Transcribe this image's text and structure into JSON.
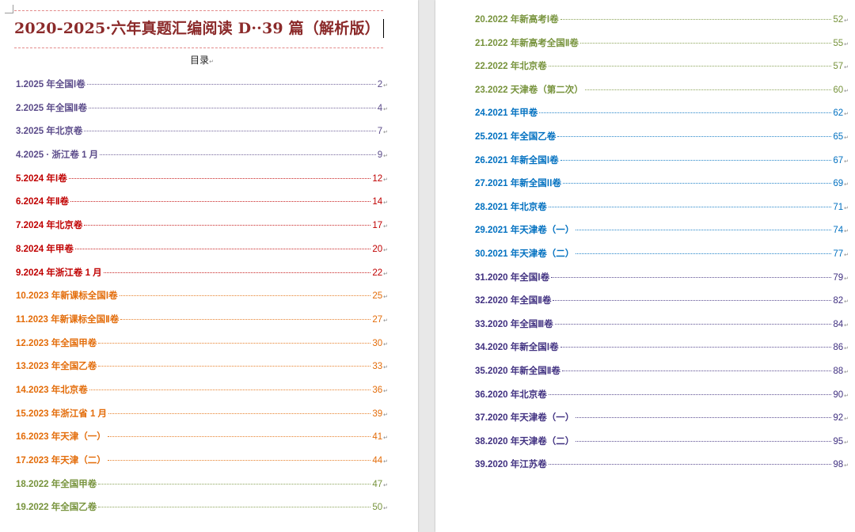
{
  "document": {
    "title": "2020-2025·六年真题汇编阅读 D··39 篇（解析版）",
    "toc_heading": "目录",
    "paragraph_mark": "↵"
  },
  "colors": {
    "title": "#8b2a2a",
    "purple": "#5b4b8a",
    "red": "#c00000",
    "orange": "#e36c09",
    "green": "#77933c",
    "blue": "#0070c0",
    "deep_purple": "#403080"
  },
  "toc_left": [
    {
      "label": "1.2025 年全国Ⅰ卷",
      "page": "2",
      "color": "#5b4b8a"
    },
    {
      "label": "2.2025 年全国Ⅱ卷",
      "page": "4",
      "color": "#5b4b8a"
    },
    {
      "label": "3.2025 年北京卷",
      "page": "7",
      "color": "#5b4b8a"
    },
    {
      "label": "4.2025 · 浙江卷 1 月",
      "page": "9",
      "color": "#5b4b8a"
    },
    {
      "label": "5.2024 年Ⅰ卷",
      "page": "12",
      "color": "#c00000"
    },
    {
      "label": "6.2024 年Ⅱ卷",
      "page": "14",
      "color": "#c00000"
    },
    {
      "label": "7.2024 年北京卷",
      "page": "17",
      "color": "#c00000"
    },
    {
      "label": "8.2024 年甲卷",
      "page": "20",
      "color": "#c00000"
    },
    {
      "label": "9.2024 年浙江卷 1 月",
      "page": "22",
      "color": "#c00000"
    },
    {
      "label": "10.2023 年新课标全国Ⅰ卷",
      "page": "25",
      "color": "#e36c09"
    },
    {
      "label": "11.2023 年新课标全国Ⅱ卷",
      "page": "27",
      "color": "#e36c09"
    },
    {
      "label": "12.2023 年全国甲卷",
      "page": "30",
      "color": "#e36c09"
    },
    {
      "label": "13.2023 年全国乙卷",
      "page": "33",
      "color": "#e36c09"
    },
    {
      "label": "14.2023 年北京卷",
      "page": "36",
      "color": "#e36c09"
    },
    {
      "label": "15.2023 年浙江省 1 月",
      "page": "39",
      "color": "#e36c09"
    },
    {
      "label": "16.2023 年天津（一）",
      "page": "41",
      "color": "#e36c09"
    },
    {
      "label": "17.2023 年天津（二）",
      "page": "44",
      "color": "#e36c09"
    },
    {
      "label": "18.2022 年全国甲卷",
      "page": "47",
      "color": "#77933c"
    },
    {
      "label": "19.2022 年全国乙卷",
      "page": "50",
      "color": "#77933c"
    }
  ],
  "toc_right": [
    {
      "label": "20.2022 年新高考Ⅰ卷",
      "page": "52",
      "color": "#77933c"
    },
    {
      "label": "21.2022 年新高考全国Ⅱ卷",
      "page": "55",
      "color": "#77933c"
    },
    {
      "label": "22.2022 年北京卷",
      "page": "57",
      "color": "#77933c"
    },
    {
      "label": "23.2022 天津卷（第二次）",
      "page": "60",
      "color": "#77933c"
    },
    {
      "label": "24.2021 年甲卷",
      "page": "62",
      "color": "#0070c0"
    },
    {
      "label": "25.2021 年全国乙卷",
      "page": "65",
      "color": "#0070c0"
    },
    {
      "label": "26.2021 年新全国Ⅰ卷",
      "page": "67",
      "color": "#0070c0"
    },
    {
      "label": "27.2021 年新全国ⅠⅠ卷",
      "page": "69",
      "color": "#0070c0"
    },
    {
      "label": "28.2021 年北京卷",
      "page": "71",
      "color": "#0070c0"
    },
    {
      "label": "29.2021 年天津卷（一）",
      "page": "74",
      "color": "#0070c0"
    },
    {
      "label": "30.2021 年天津卷（二）",
      "page": "77",
      "color": "#0070c0"
    },
    {
      "label": "31.2020 年全国Ⅰ卷",
      "page": "79",
      "color": "#403080"
    },
    {
      "label": "32.2020 年全国Ⅱ卷",
      "page": "82",
      "color": "#403080"
    },
    {
      "label": "33.2020 年全国Ⅲ卷",
      "page": "84",
      "color": "#403080"
    },
    {
      "label": "34.2020 年新全国Ⅰ卷",
      "page": "86",
      "color": "#403080"
    },
    {
      "label": "35.2020 年新全国Ⅱ卷",
      "page": "88",
      "color": "#403080"
    },
    {
      "label": "36.2020 年北京卷",
      "page": "90",
      "color": "#403080"
    },
    {
      "label": "37.2020 年天津卷（一）",
      "page": "92",
      "color": "#403080"
    },
    {
      "label": "38.2020 年天津卷（二）",
      "page": "95",
      "color": "#403080"
    },
    {
      "label": "39.2020 年江苏卷",
      "page": "98",
      "color": "#403080"
    }
  ]
}
